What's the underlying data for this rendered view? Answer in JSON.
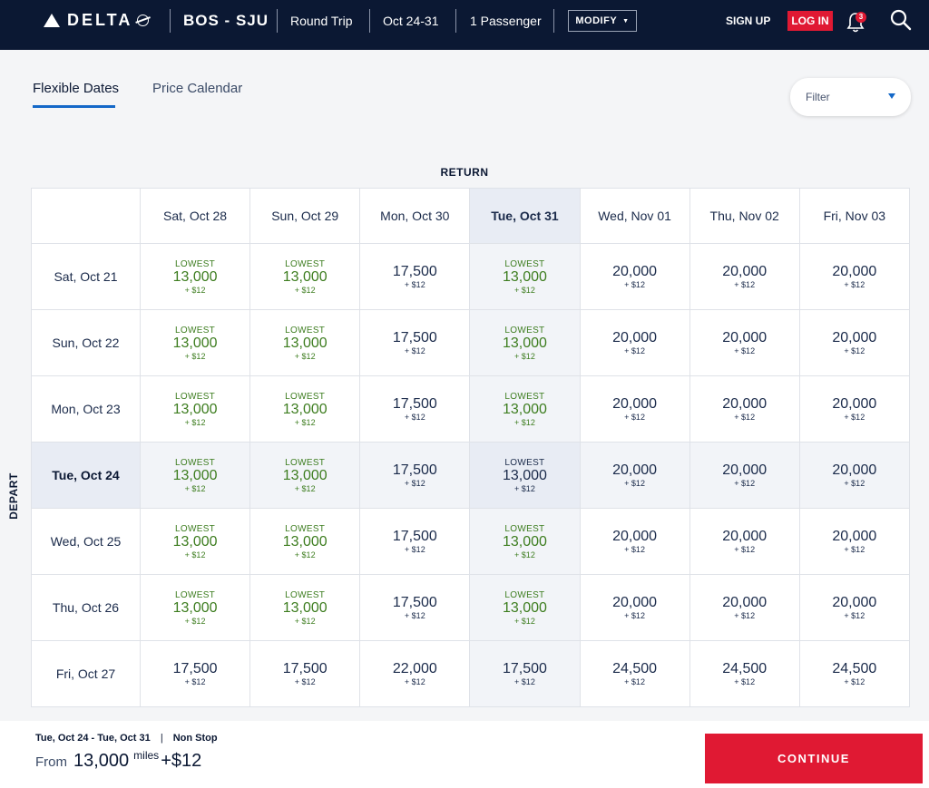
{
  "header": {
    "logo_text": "DELTA",
    "route": "BOS - SJU",
    "trip_type": "Round Trip",
    "dates": "Oct 24-31",
    "passengers": "1 Passenger",
    "modify_label": "MODIFY",
    "signup_label": "SIGN UP",
    "login_label": "LOG IN",
    "notification_count": "3"
  },
  "tabs": [
    {
      "label": "Flexible Dates",
      "active": true
    },
    {
      "label": "Price Calendar",
      "active": false
    }
  ],
  "filter": {
    "label": "Filter"
  },
  "grid": {
    "return_label": "RETURN",
    "depart_label": "DEPART",
    "lowest_tag": "LOWEST",
    "columns": [
      "Sat, Oct 28",
      "Sun, Oct 29",
      "Mon, Oct 30",
      "Tue, Oct 31",
      "Wed, Nov 01",
      "Thu, Nov 02",
      "Fri, Nov 03"
    ],
    "selected_column": 3,
    "selected_row": 3,
    "rows": [
      {
        "label": "Sat, Oct 21",
        "cells": [
          {
            "miles": "13,000",
            "fee": "+ $12",
            "lowest": true
          },
          {
            "miles": "13,000",
            "fee": "+ $12",
            "lowest": true
          },
          {
            "miles": "17,500",
            "fee": "+ $12",
            "lowest": false
          },
          {
            "miles": "13,000",
            "fee": "+ $12",
            "lowest": true
          },
          {
            "miles": "20,000",
            "fee": "+ $12",
            "lowest": false
          },
          {
            "miles": "20,000",
            "fee": "+ $12",
            "lowest": false
          },
          {
            "miles": "20,000",
            "fee": "+ $12",
            "lowest": false
          }
        ]
      },
      {
        "label": "Sun, Oct 22",
        "cells": [
          {
            "miles": "13,000",
            "fee": "+ $12",
            "lowest": true
          },
          {
            "miles": "13,000",
            "fee": "+ $12",
            "lowest": true
          },
          {
            "miles": "17,500",
            "fee": "+ $12",
            "lowest": false
          },
          {
            "miles": "13,000",
            "fee": "+ $12",
            "lowest": true
          },
          {
            "miles": "20,000",
            "fee": "+ $12",
            "lowest": false
          },
          {
            "miles": "20,000",
            "fee": "+ $12",
            "lowest": false
          },
          {
            "miles": "20,000",
            "fee": "+ $12",
            "lowest": false
          }
        ]
      },
      {
        "label": "Mon, Oct 23",
        "cells": [
          {
            "miles": "13,000",
            "fee": "+ $12",
            "lowest": true
          },
          {
            "miles": "13,000",
            "fee": "+ $12",
            "lowest": true
          },
          {
            "miles": "17,500",
            "fee": "+ $12",
            "lowest": false
          },
          {
            "miles": "13,000",
            "fee": "+ $12",
            "lowest": true
          },
          {
            "miles": "20,000",
            "fee": "+ $12",
            "lowest": false
          },
          {
            "miles": "20,000",
            "fee": "+ $12",
            "lowest": false
          },
          {
            "miles": "20,000",
            "fee": "+ $12",
            "lowest": false
          }
        ]
      },
      {
        "label": "Tue, Oct 24",
        "cells": [
          {
            "miles": "13,000",
            "fee": "+ $12",
            "lowest": true
          },
          {
            "miles": "13,000",
            "fee": "+ $12",
            "lowest": true
          },
          {
            "miles": "17,500",
            "fee": "+ $12",
            "lowest": false
          },
          {
            "miles": "13,000",
            "fee": "+ $12",
            "lowest": true
          },
          {
            "miles": "20,000",
            "fee": "+ $12",
            "lowest": false
          },
          {
            "miles": "20,000",
            "fee": "+ $12",
            "lowest": false
          },
          {
            "miles": "20,000",
            "fee": "+ $12",
            "lowest": false
          }
        ]
      },
      {
        "label": "Wed, Oct 25",
        "cells": [
          {
            "miles": "13,000",
            "fee": "+ $12",
            "lowest": true
          },
          {
            "miles": "13,000",
            "fee": "+ $12",
            "lowest": true
          },
          {
            "miles": "17,500",
            "fee": "+ $12",
            "lowest": false
          },
          {
            "miles": "13,000",
            "fee": "+ $12",
            "lowest": true
          },
          {
            "miles": "20,000",
            "fee": "+ $12",
            "lowest": false
          },
          {
            "miles": "20,000",
            "fee": "+ $12",
            "lowest": false
          },
          {
            "miles": "20,000",
            "fee": "+ $12",
            "lowest": false
          }
        ]
      },
      {
        "label": "Thu, Oct 26",
        "cells": [
          {
            "miles": "13,000",
            "fee": "+ $12",
            "lowest": true
          },
          {
            "miles": "13,000",
            "fee": "+ $12",
            "lowest": true
          },
          {
            "miles": "17,500",
            "fee": "+ $12",
            "lowest": false
          },
          {
            "miles": "13,000",
            "fee": "+ $12",
            "lowest": true
          },
          {
            "miles": "20,000",
            "fee": "+ $12",
            "lowest": false
          },
          {
            "miles": "20,000",
            "fee": "+ $12",
            "lowest": false
          },
          {
            "miles": "20,000",
            "fee": "+ $12",
            "lowest": false
          }
        ]
      },
      {
        "label": "Fri, Oct 27",
        "cells": [
          {
            "miles": "17,500",
            "fee": "+ $12",
            "lowest": false
          },
          {
            "miles": "17,500",
            "fee": "+ $12",
            "lowest": false
          },
          {
            "miles": "22,000",
            "fee": "+ $12",
            "lowest": false
          },
          {
            "miles": "17,500",
            "fee": "+ $12",
            "lowest": false
          },
          {
            "miles": "24,500",
            "fee": "+ $12",
            "lowest": false
          },
          {
            "miles": "24,500",
            "fee": "+ $12",
            "lowest": false
          },
          {
            "miles": "24,500",
            "fee": "+ $12",
            "lowest": false
          }
        ]
      }
    ]
  },
  "footer": {
    "trip_dates": "Tue, Oct 24  -  Tue, Oct 31",
    "pipe": "|",
    "stops": "Non Stop",
    "from_label": "From",
    "amount": "13,000",
    "miles_label": "miles",
    "fee": "+$12",
    "continue_label": "CONTINUE"
  },
  "colors": {
    "header_bg": "#0b1833",
    "accent_red": "#e01933",
    "lowest_green": "#3d7d1f",
    "tab_blue": "#1468c8"
  }
}
